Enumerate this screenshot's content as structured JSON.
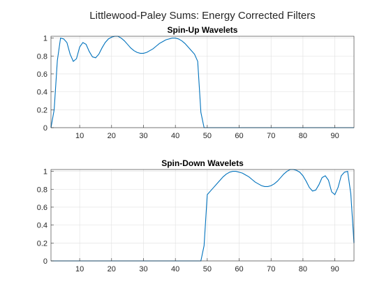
{
  "figure_title": "Littlewood-Paley Sums: Energy Corrected Filters",
  "colors": {
    "line": "#0072BD",
    "grid": "#dfdfdf",
    "axis": "#262626"
  },
  "chart_data": [
    {
      "type": "line",
      "title": "Spin-Up Wavelets",
      "xlabel": "",
      "ylabel": "",
      "xlim": [
        1,
        96
      ],
      "ylim": [
        0,
        1.02
      ],
      "grid": true,
      "xticks": [
        10,
        20,
        30,
        40,
        50,
        60,
        70,
        80,
        90
      ],
      "yticks": [
        0,
        0.2,
        0.4,
        0.6,
        0.8,
        1
      ],
      "series": [
        {
          "x": [
            1,
            2,
            3,
            4,
            5,
            6,
            7,
            8,
            9,
            10,
            11,
            12,
            13,
            14,
            15,
            16,
            17,
            18,
            19,
            20,
            21,
            22,
            23,
            24,
            25,
            26,
            27,
            28,
            29,
            30,
            31,
            32,
            33,
            34,
            35,
            36,
            37,
            38,
            39,
            40,
            41,
            42,
            43,
            44,
            45,
            46,
            47,
            48,
            49,
            50,
            51,
            52,
            53,
            54,
            55,
            56,
            57,
            58,
            59,
            60,
            61,
            62,
            63,
            64,
            65,
            66,
            67,
            68,
            69,
            70,
            71,
            72,
            73,
            74,
            75,
            76,
            77,
            78,
            79,
            80,
            81,
            82,
            83,
            84,
            85,
            86,
            87,
            88,
            89,
            90,
            91,
            92,
            93,
            94,
            95,
            96
          ],
          "y": [
            0.0,
            0.2,
            0.75,
            1.0,
            0.99,
            0.95,
            0.82,
            0.74,
            0.77,
            0.9,
            0.95,
            0.93,
            0.85,
            0.79,
            0.78,
            0.82,
            0.89,
            0.95,
            0.99,
            1.01,
            1.02,
            1.02,
            1.0,
            0.97,
            0.93,
            0.89,
            0.86,
            0.84,
            0.83,
            0.83,
            0.84,
            0.86,
            0.88,
            0.91,
            0.94,
            0.96,
            0.98,
            0.99,
            1.0,
            1.0,
            0.99,
            0.97,
            0.94,
            0.9,
            0.86,
            0.82,
            0.74,
            0.17,
            0.0,
            0.0,
            0.0,
            0.0,
            0.0,
            0.0,
            0.0,
            0.0,
            0.0,
            0.0,
            0.0,
            0.0,
            0.0,
            0.0,
            0.0,
            0.0,
            0.0,
            0.0,
            0.0,
            0.0,
            0.0,
            0.0,
            0.0,
            0.0,
            0.0,
            0.0,
            0.0,
            0.0,
            0.0,
            0.0,
            0.0,
            0.0,
            0.0,
            0.0,
            0.0,
            0.0,
            0.0,
            0.0,
            0.0,
            0.0,
            0.0,
            0.0,
            0.0,
            0.0,
            0.0,
            0.0,
            0.0,
            0.0
          ]
        }
      ]
    },
    {
      "type": "line",
      "title": "Spin-Down Wavelets",
      "xlabel": "",
      "ylabel": "",
      "xlim": [
        1,
        96
      ],
      "ylim": [
        0,
        1.02
      ],
      "grid": true,
      "xticks": [
        10,
        20,
        30,
        40,
        50,
        60,
        70,
        80,
        90
      ],
      "yticks": [
        0,
        0.2,
        0.4,
        0.6,
        0.8,
        1
      ],
      "series": [
        {
          "x": [
            1,
            2,
            3,
            4,
            5,
            6,
            7,
            8,
            9,
            10,
            11,
            12,
            13,
            14,
            15,
            16,
            17,
            18,
            19,
            20,
            21,
            22,
            23,
            24,
            25,
            26,
            27,
            28,
            29,
            30,
            31,
            32,
            33,
            34,
            35,
            36,
            37,
            38,
            39,
            40,
            41,
            42,
            43,
            44,
            45,
            46,
            47,
            48,
            49,
            50,
            51,
            52,
            53,
            54,
            55,
            56,
            57,
            58,
            59,
            60,
            61,
            62,
            63,
            64,
            65,
            66,
            67,
            68,
            69,
            70,
            71,
            72,
            73,
            74,
            75,
            76,
            77,
            78,
            79,
            80,
            81,
            82,
            83,
            84,
            85,
            86,
            87,
            88,
            89,
            90,
            91,
            92,
            93,
            94,
            95,
            96
          ],
          "y": [
            0.0,
            0.0,
            0.0,
            0.0,
            0.0,
            0.0,
            0.0,
            0.0,
            0.0,
            0.0,
            0.0,
            0.0,
            0.0,
            0.0,
            0.0,
            0.0,
            0.0,
            0.0,
            0.0,
            0.0,
            0.0,
            0.0,
            0.0,
            0.0,
            0.0,
            0.0,
            0.0,
            0.0,
            0.0,
            0.0,
            0.0,
            0.0,
            0.0,
            0.0,
            0.0,
            0.0,
            0.0,
            0.0,
            0.0,
            0.0,
            0.0,
            0.0,
            0.0,
            0.0,
            0.0,
            0.0,
            0.0,
            0.0,
            0.17,
            0.74,
            0.78,
            0.82,
            0.86,
            0.9,
            0.94,
            0.97,
            0.99,
            1.0,
            1.0,
            0.99,
            0.98,
            0.96,
            0.94,
            0.91,
            0.88,
            0.86,
            0.84,
            0.83,
            0.83,
            0.84,
            0.86,
            0.89,
            0.93,
            0.97,
            1.0,
            1.02,
            1.02,
            1.01,
            0.99,
            0.95,
            0.89,
            0.82,
            0.78,
            0.79,
            0.85,
            0.93,
            0.95,
            0.9,
            0.77,
            0.74,
            0.82,
            0.95,
            0.99,
            1.0,
            0.75,
            0.2
          ]
        }
      ]
    }
  ]
}
